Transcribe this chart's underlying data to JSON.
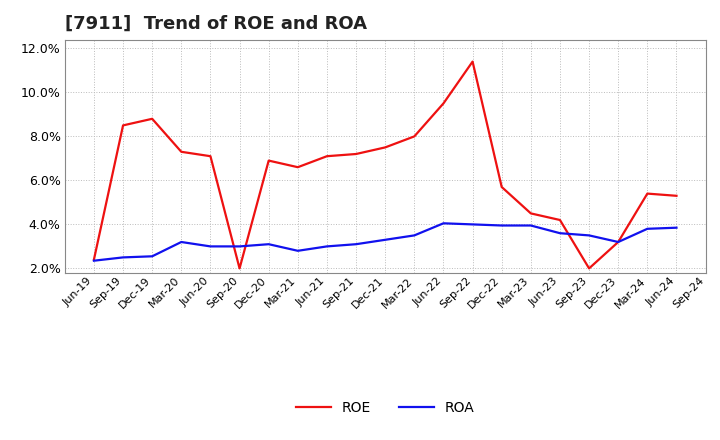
{
  "title": "[7911]  Trend of ROE and ROA",
  "labels": [
    "Jun-19",
    "Sep-19",
    "Dec-19",
    "Mar-20",
    "Jun-20",
    "Sep-20",
    "Dec-20",
    "Mar-21",
    "Jun-21",
    "Sep-21",
    "Dec-21",
    "Mar-22",
    "Jun-22",
    "Sep-22",
    "Dec-22",
    "Mar-23",
    "Jun-23",
    "Sep-23",
    "Dec-23",
    "Mar-24",
    "Jun-24",
    "Sep-24"
  ],
  "ROE": [
    2.4,
    8.5,
    8.8,
    7.3,
    7.1,
    2.0,
    6.9,
    6.6,
    7.1,
    7.2,
    7.5,
    8.0,
    9.5,
    11.4,
    5.7,
    4.5,
    4.2,
    2.0,
    3.2,
    5.4,
    5.3,
    null
  ],
  "ROA": [
    2.35,
    2.5,
    2.55,
    3.2,
    3.0,
    3.0,
    3.1,
    2.8,
    3.0,
    3.1,
    3.3,
    3.5,
    4.05,
    4.0,
    3.95,
    3.95,
    3.6,
    3.5,
    3.2,
    3.8,
    3.85,
    null
  ],
  "roe_color": "#EE1111",
  "roa_color": "#1111EE",
  "ylim": [
    1.8,
    12.4
  ],
  "yticks": [
    2.0,
    4.0,
    6.0,
    8.0,
    10.0,
    12.0
  ],
  "background_color": "#FFFFFF",
  "plot_bg_color": "#FFFFFF",
  "grid_color": "#BBBBBB",
  "title_fontsize": 13,
  "tick_fontsize": 8,
  "legend_labels": [
    "ROE",
    "ROA"
  ],
  "line_width": 1.6
}
